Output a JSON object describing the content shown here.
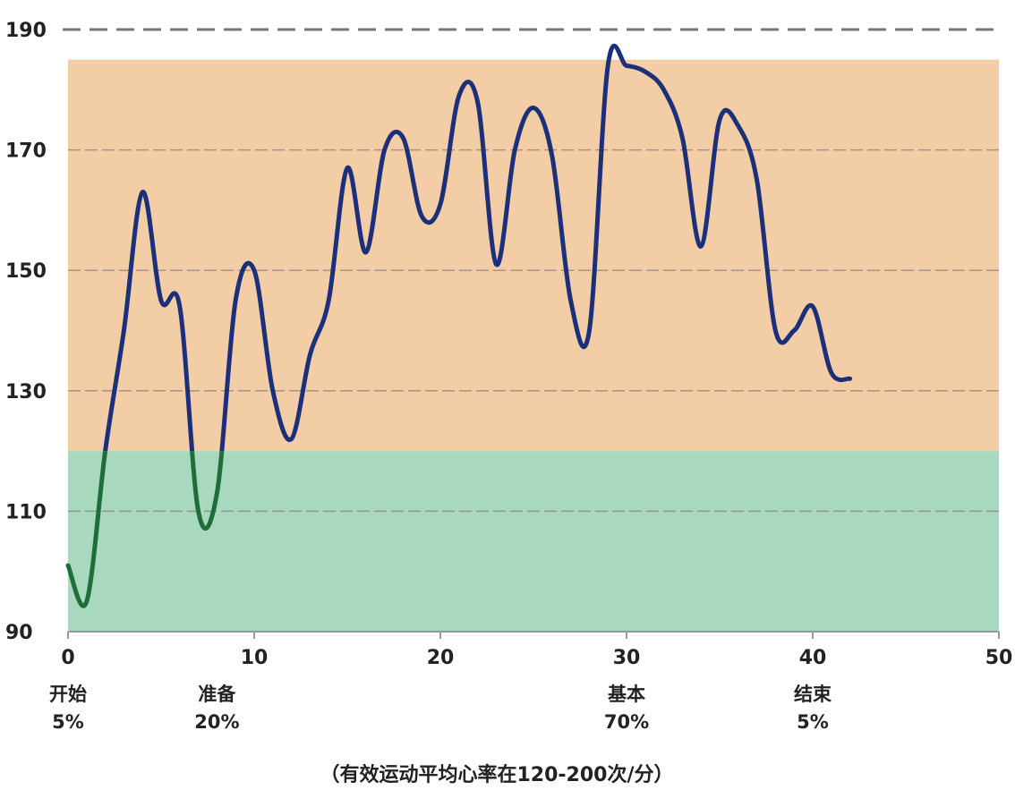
{
  "chart_data": {
    "type": "line",
    "xlim": [
      0,
      50
    ],
    "ylim": [
      90,
      190
    ],
    "x_ticks": [
      0,
      10,
      20,
      30,
      40,
      50
    ],
    "y_ticks": [
      90,
      110,
      130,
      150,
      170,
      190
    ],
    "threshold": 120,
    "dashed_line_y": 190,
    "zones": [
      {
        "from": 90,
        "to": 120,
        "color": "#a8d8be"
      },
      {
        "from": 120,
        "to": 185,
        "color": "#f2cda6"
      }
    ],
    "line_colors": {
      "below_threshold": "#1f6e3a",
      "above_threshold": "#1c2f7a"
    },
    "x": [
      0,
      1,
      2,
      3,
      4,
      5,
      6,
      7,
      8,
      9,
      10,
      11,
      12,
      13,
      14,
      15,
      16,
      17,
      18,
      19,
      20,
      21,
      22,
      23,
      24,
      25,
      26,
      27,
      28,
      29,
      30,
      31,
      32,
      33,
      34,
      35,
      36,
      37,
      38,
      39,
      40,
      41,
      42
    ],
    "y": [
      101,
      95,
      120,
      140,
      163,
      145,
      144,
      110,
      113,
      145,
      150,
      130,
      122,
      136,
      145,
      167,
      153,
      170,
      172,
      159,
      161,
      179,
      178,
      151,
      170,
      177,
      169,
      145,
      140,
      184,
      184,
      183,
      180,
      172,
      154,
      175,
      174,
      165,
      140,
      140,
      144,
      133,
      132
    ],
    "phases": [
      {
        "label": "开始",
        "pct": "5%",
        "x": 0
      },
      {
        "label": "准备",
        "pct": "20%",
        "x": 8
      },
      {
        "label": "基本",
        "pct": "70%",
        "x": 30
      },
      {
        "label": "结束",
        "pct": "5%",
        "x": 40
      }
    ],
    "caption": "（有效运动平均心率在120-200次/分）"
  }
}
